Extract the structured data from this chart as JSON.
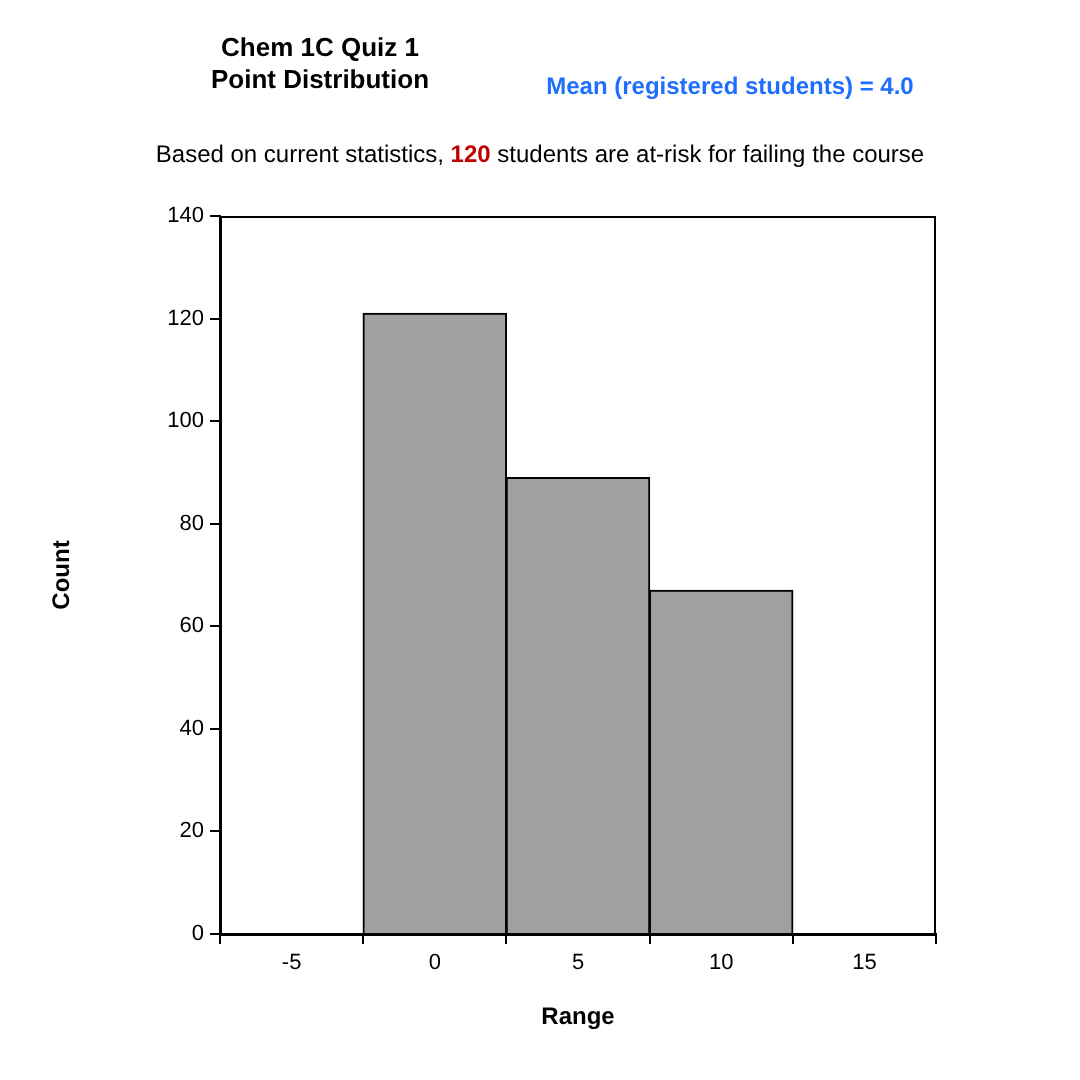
{
  "chart_data": {
    "type": "histogram",
    "title": "Chem 1C Quiz 1\nPoint Distribution",
    "subtitle": "Based on current statistics, 120 students are at-risk for failing the course",
    "annotations": [
      "Mean (registered students) = 4.0"
    ],
    "xlabel": "Range",
    "ylabel": "Count",
    "bins": [
      -2.5,
      2.5,
      7.5,
      12.5
    ],
    "values": [
      121,
      89,
      67
    ],
    "color": "#a0a0a0",
    "xlim": [
      -7.5,
      17.5
    ],
    "xticks": [
      -5,
      0,
      5,
      10,
      15
    ],
    "ylim": [
      0,
      140
    ],
    "yticks": [
      0,
      20,
      40,
      60,
      80,
      100,
      120,
      140
    ],
    "grid": false,
    "legend": false
  }
}
